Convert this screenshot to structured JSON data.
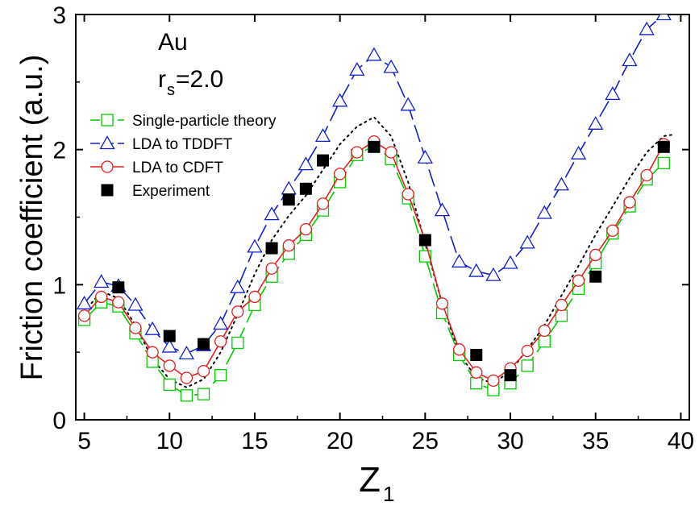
{
  "chart_data": {
    "type": "line",
    "title": "",
    "xlabel": "Z",
    "xlabel_sub": "1",
    "ylabel": "Friction coefficient (a.u.)",
    "xlim": [
      4.5,
      40.5
    ],
    "ylim": [
      0,
      3
    ],
    "xticks": [
      "5",
      "10",
      "15",
      "20",
      "25",
      "30",
      "35",
      "40"
    ],
    "yticks": [
      "0",
      "1",
      "2",
      "3"
    ],
    "grid": false,
    "legend_position": "upper-left",
    "annotations": {
      "material": "Au",
      "rs_prefix": "r",
      "rs_sub": "s",
      "rs_suffix": "=2.0"
    },
    "series": [
      {
        "name": "Single-particle theory",
        "color": "#00cc00",
        "marker": "square-open",
        "line": "dash",
        "x": [
          5,
          6,
          7,
          8,
          9,
          10,
          11,
          12,
          13,
          14,
          15,
          16,
          17,
          18,
          19,
          20,
          21,
          22,
          23,
          24,
          25,
          26,
          27,
          28,
          29,
          30,
          31,
          32,
          33,
          34,
          35,
          36,
          37,
          38,
          39
        ],
        "y": [
          0.74,
          0.87,
          0.84,
          0.64,
          0.43,
          0.26,
          0.18,
          0.19,
          0.33,
          0.57,
          0.85,
          1.06,
          1.23,
          1.37,
          1.55,
          1.76,
          1.96,
          2.03,
          1.93,
          1.64,
          1.21,
          0.79,
          0.48,
          0.27,
          0.22,
          0.27,
          0.4,
          0.58,
          0.77,
          0.97,
          1.16,
          1.38,
          1.58,
          1.78,
          1.9
        ]
      },
      {
        "name": "LDA to TDDFT",
        "color": "#1020c8",
        "marker": "triangle-open",
        "line": "dash",
        "x": [
          5,
          6,
          7,
          8,
          9,
          10,
          11,
          12,
          13,
          14,
          15,
          16,
          17,
          18,
          19,
          20,
          21,
          22,
          23,
          24,
          25,
          26,
          27,
          28,
          29,
          30,
          31,
          32,
          33,
          34,
          35,
          36,
          37,
          38,
          39
        ],
        "y": [
          0.86,
          1.02,
          0.99,
          0.85,
          0.67,
          0.54,
          0.49,
          0.55,
          0.71,
          0.98,
          1.28,
          1.52,
          1.71,
          1.89,
          2.1,
          2.36,
          2.59,
          2.7,
          2.61,
          2.33,
          1.94,
          1.55,
          1.17,
          1.1,
          1.07,
          1.16,
          1.31,
          1.53,
          1.74,
          1.97,
          2.19,
          2.41,
          2.66,
          2.89,
          3.0
        ]
      },
      {
        "name": "LDA to CDFT",
        "color": "#e02020",
        "marker": "circle-open",
        "line": "solid",
        "x": [
          5,
          6,
          7,
          8,
          9,
          10,
          11,
          12,
          13,
          14,
          15,
          16,
          17,
          18,
          19,
          20,
          21,
          22,
          23,
          24,
          25,
          26,
          27,
          28,
          29,
          30,
          31,
          32,
          33,
          34,
          35,
          36,
          37,
          38,
          39
        ],
        "y": [
          0.77,
          0.91,
          0.87,
          0.68,
          0.5,
          0.4,
          0.31,
          0.36,
          0.58,
          0.8,
          0.91,
          1.12,
          1.29,
          1.41,
          1.6,
          1.82,
          1.98,
          2.06,
          1.98,
          1.67,
          1.33,
          0.86,
          0.52,
          0.35,
          0.29,
          0.38,
          0.51,
          0.66,
          0.85,
          1.03,
          1.22,
          1.4,
          1.61,
          1.81,
          2.04
        ]
      },
      {
        "name": "Experiment",
        "color": "#000000",
        "marker": "square-filled",
        "line": "none",
        "x": [
          7,
          10,
          12,
          16,
          17,
          18,
          19,
          22,
          25,
          28,
          30,
          35,
          39
        ],
        "y": [
          0.98,
          0.62,
          0.56,
          1.27,
          1.63,
          1.71,
          1.92,
          2.02,
          1.33,
          0.48,
          0.33,
          1.06,
          2.02
        ]
      },
      {
        "color": "#000000",
        "marker": "none",
        "line": "dot",
        "x": [
          5,
          6,
          7,
          8,
          9,
          10,
          11,
          12,
          13,
          14,
          15,
          16,
          17,
          18,
          19,
          20,
          21,
          22,
          23,
          24,
          25,
          26,
          27,
          28,
          29,
          30,
          31,
          32,
          33,
          34,
          35,
          36,
          37,
          38,
          39,
          39.5
        ],
        "y": [
          0.8,
          0.95,
          0.9,
          0.7,
          0.45,
          0.3,
          0.24,
          0.3,
          0.5,
          0.78,
          1.08,
          1.33,
          1.51,
          1.66,
          1.85,
          2.04,
          2.17,
          2.24,
          2.1,
          1.76,
          1.31,
          0.86,
          0.49,
          0.31,
          0.27,
          0.36,
          0.52,
          0.7,
          0.92,
          1.14,
          1.37,
          1.58,
          1.79,
          1.98,
          2.1,
          2.11
        ]
      }
    ]
  }
}
